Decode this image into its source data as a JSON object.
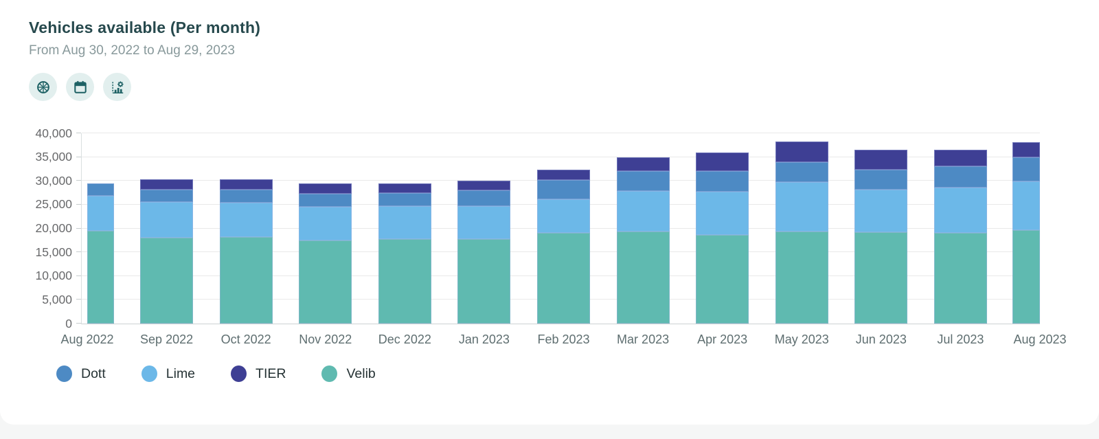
{
  "header": {
    "title": "Vehicles available (Per month)",
    "subtitle": "From Aug 30, 2022 to Aug 29, 2023",
    "toolbar_icons": [
      "wheel-icon",
      "calendar-icon",
      "chart-settings-icon"
    ]
  },
  "theme": {
    "title_color": "#26494d",
    "subtitle_color": "#88999b",
    "icon_color": "#1d6164",
    "icon_bg": "#e2efee",
    "grid_color": "#e9e9e9",
    "axis_text_color": "#5e6e70"
  },
  "chart_data": {
    "type": "bar",
    "stacked": true,
    "title": "Vehicles available (Per month)",
    "xlabel": "",
    "ylabel": "",
    "ylim": [
      0,
      40000
    ],
    "ytick_step": 5000,
    "grid": "horizontal",
    "legend_position": "bottom-left",
    "categories": [
      "Aug 2022",
      "Sep 2022",
      "Oct 2022",
      "Nov 2022",
      "Dec 2022",
      "Jan 2023",
      "Feb 2023",
      "Mar 2023",
      "Apr 2023",
      "May 2023",
      "Jun 2023",
      "Jul 2023",
      "Aug 2023"
    ],
    "stack_order_bottom_to_top": [
      "Velib",
      "Lime",
      "Dott",
      "TIER"
    ],
    "series": [
      {
        "name": "Velib",
        "color": "#5fbab0",
        "values": [
          19500,
          18100,
          18200,
          17500,
          17800,
          17800,
          19000,
          19400,
          18600,
          19400,
          19200,
          19100,
          19600
        ]
      },
      {
        "name": "Lime",
        "color": "#6cb8e8",
        "values": [
          7400,
          7500,
          7200,
          7000,
          6900,
          6900,
          7100,
          8500,
          9200,
          10400,
          8900,
          9500,
          10300
        ]
      },
      {
        "name": "Dott",
        "color": "#4d8ac4",
        "values": [
          2600,
          2500,
          2700,
          2800,
          2700,
          3300,
          4100,
          4200,
          4200,
          4200,
          4200,
          4400,
          5000
        ]
      },
      {
        "name": "TIER",
        "color": "#3e3f94",
        "values": [
          0,
          2300,
          2200,
          2100,
          2000,
          2000,
          2200,
          2900,
          4000,
          4200,
          4300,
          3500,
          3200
        ]
      }
    ],
    "totals": [
      29500,
      30400,
      30300,
      29400,
      29400,
      30000,
      32400,
      35000,
      36000,
      38200,
      36600,
      36500,
      38100
    ],
    "legend": [
      {
        "label": "Dott",
        "color": "#4d8ac4"
      },
      {
        "label": "Lime",
        "color": "#6cb8e8"
      },
      {
        "label": "TIER",
        "color": "#3e3f94"
      },
      {
        "label": "Velib",
        "color": "#5fbab0"
      }
    ]
  }
}
